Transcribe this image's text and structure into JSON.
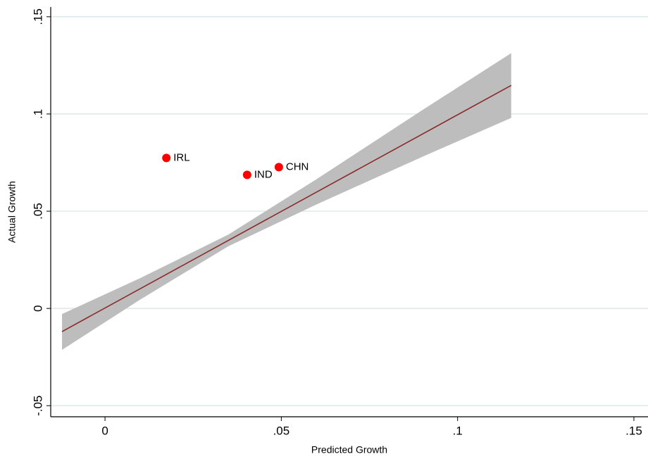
{
  "chart_data": {
    "type": "scatter",
    "x_label": "Predicted Growth",
    "y_label": "Actual Growth",
    "xlim": [
      -0.0154,
      0.154
    ],
    "ylim": [
      -0.0557,
      0.155
    ],
    "xticks": [
      0,
      {
        "value": 0.05,
        "label": ".05"
      },
      {
        "value": 0.1,
        "label": ".1"
      },
      {
        "value": 0.15,
        "label": ".15"
      }
    ],
    "yticks": [
      {
        "value": -0.05,
        "label": "-.05"
      },
      0,
      {
        "value": 0.05,
        "label": ".05"
      },
      {
        "value": 0.1,
        "label": ".1"
      },
      {
        "value": 0.15,
        "label": ".15"
      }
    ],
    "grid": true,
    "band": {
      "color": "#bdbdbd",
      "x": [
        -0.0122,
        0.01,
        0.035,
        0.06,
        0.09,
        0.1152
      ],
      "lower": [
        -0.0213,
        0.0046,
        0.032,
        0.0535,
        0.078,
        0.098
      ],
      "upper": [
        -0.0029,
        0.0156,
        0.038,
        0.0665,
        0.102,
        0.1313
      ]
    },
    "fit": {
      "color": "#8b2a2a",
      "x": [
        -0.0122,
        0.1152
      ],
      "y": [
        -0.0119,
        0.1147
      ]
    },
    "points": {
      "color": "#ff0000",
      "labels": [
        "IRL",
        "IND",
        "CHN"
      ],
      "x": [
        0.0174,
        0.0403,
        0.0493
      ],
      "y": [
        0.0774,
        0.0687,
        0.0727
      ]
    }
  }
}
